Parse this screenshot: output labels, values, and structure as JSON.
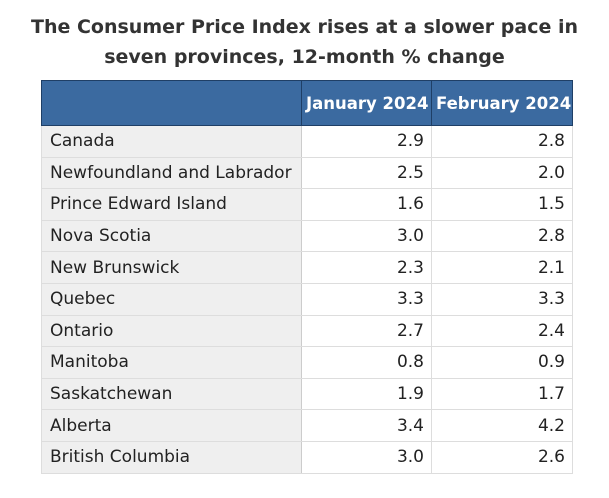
{
  "chart_data": {
    "type": "table",
    "title": "The Consumer Price Index rises at a slower pace in seven provinces, 12-month % change",
    "title_lines": [
      "The Consumer Price Index rises at a slower pace in",
      "seven provinces, 12-month % change"
    ],
    "columns": [
      "",
      "January 2024",
      "February 2024"
    ],
    "rows": [
      {
        "region": "Canada",
        "jan": "2.9",
        "feb": "2.8"
      },
      {
        "region": "Newfoundland and Labrador",
        "jan": "2.5",
        "feb": "2.0"
      },
      {
        "region": "Prince Edward Island",
        "jan": "1.6",
        "feb": "1.5"
      },
      {
        "region": "Nova Scotia",
        "jan": "3.0",
        "feb": "2.8"
      },
      {
        "region": "New Brunswick",
        "jan": "2.3",
        "feb": "2.1"
      },
      {
        "region": "Quebec",
        "jan": "3.3",
        "feb": "3.3"
      },
      {
        "region": "Ontario",
        "jan": "2.7",
        "feb": "2.4"
      },
      {
        "region": "Manitoba",
        "jan": "0.8",
        "feb": "0.9"
      },
      {
        "region": "Saskatchewan",
        "jan": "1.9",
        "feb": "1.7"
      },
      {
        "region": "Alberta",
        "jan": "3.4",
        "feb": "4.2"
      },
      {
        "region": "British Columbia",
        "jan": "3.0",
        "feb": "2.6"
      }
    ],
    "colors": {
      "header_background": "#3b6aa0",
      "header_text": "#ffffff",
      "label_column_background": "#efefef"
    }
  }
}
